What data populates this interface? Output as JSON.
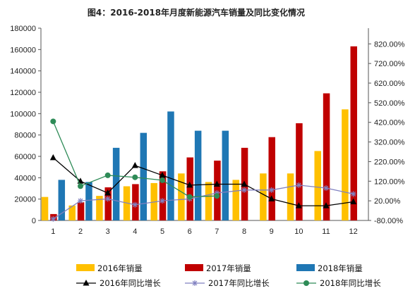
{
  "chart_data": {
    "type": "bar",
    "title": "图4：2016-2018年月度新能源汽车销量及同比变化情况",
    "categories": [
      "1",
      "2",
      "3",
      "4",
      "5",
      "6",
      "7",
      "8",
      "9",
      "10",
      "11",
      "12"
    ],
    "left_axis": {
      "ylim": [
        0,
        180000
      ],
      "ticks": [
        0,
        20000,
        40000,
        60000,
        80000,
        100000,
        120000,
        140000,
        160000,
        180000
      ],
      "tick_labels": [
        "0",
        "20000",
        "40000",
        "60000",
        "80000",
        "100000",
        "120000",
        "140000",
        "160000",
        "180000"
      ]
    },
    "right_axis": {
      "ylim": [
        -80,
        900
      ],
      "ticks": [
        -80,
        20,
        120,
        220,
        320,
        420,
        520,
        620,
        720,
        820
      ],
      "tick_labels": [
        "-80.00%",
        "20.00%",
        "120.00%",
        "220.00%",
        "320.00%",
        "420.00%",
        "520.00%",
        "620.00%",
        "720.00%",
        "820.00%"
      ]
    },
    "bar_series": [
      {
        "name": "2016年销量",
        "color": "#FFC000",
        "values": [
          22000,
          14000,
          23000,
          32000,
          35000,
          44000,
          36000,
          38000,
          44000,
          44000,
          65000,
          104000
        ]
      },
      {
        "name": "2017年销量",
        "color": "#C00000",
        "values": [
          6000,
          17000,
          31000,
          34000,
          46000,
          59000,
          56000,
          68000,
          78000,
          91000,
          119000,
          163000
        ]
      },
      {
        "name": "2018年销量",
        "color": "#1F77B4",
        "values": [
          38000,
          36000,
          68000,
          82000,
          102000,
          84000,
          84000,
          null,
          null,
          null,
          null,
          null
        ]
      }
    ],
    "line_series": [
      {
        "name": "2016年同比增长",
        "color": "#000000",
        "marker": "triangle",
        "values": [
          240,
          120,
          60,
          200,
          150,
          100,
          105,
          105,
          30,
          -5,
          -5,
          15
        ]
      },
      {
        "name": "2017年同比增长",
        "color": "#8080C0",
        "marker": "star",
        "values": [
          -72,
          20,
          30,
          0,
          20,
          30,
          60,
          75,
          75,
          100,
          85,
          55
        ]
      },
      {
        "name": "2018年同比增长",
        "color": "#2E8B57",
        "marker": "circle",
        "values": [
          425,
          95,
          150,
          140,
          125,
          40,
          45,
          null,
          null,
          null,
          null,
          null
        ]
      }
    ]
  }
}
